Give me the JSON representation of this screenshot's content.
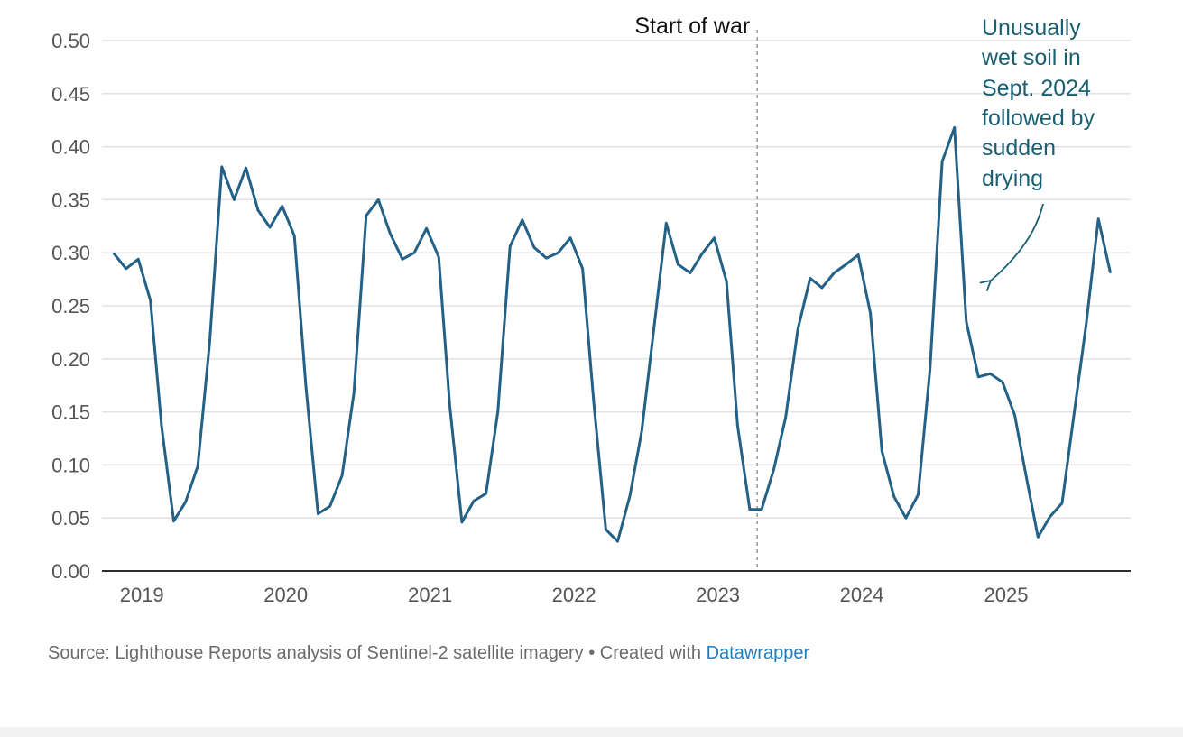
{
  "chart_data": {
    "type": "line",
    "title": "",
    "xlabel": "",
    "ylabel": "",
    "ylim": [
      0,
      0.5
    ],
    "grid": true,
    "x_ticks": [
      "2019",
      "2020",
      "2021",
      "2022",
      "2023",
      "2024",
      "2025"
    ],
    "y_ticks": [
      "0.00",
      "0.05",
      "0.10",
      "0.15",
      "0.20",
      "0.25",
      "0.30",
      "0.35",
      "0.40",
      "0.45",
      "0.50"
    ],
    "series": [
      {
        "color": "#236286",
        "x": [
          "2018-11",
          "2018-12",
          "2019-01",
          "2019-02",
          "2019-03",
          "2019-04",
          "2019-05",
          "2019-06",
          "2019-07",
          "2019-08",
          "2019-09",
          "2019-10",
          "2019-11",
          "2019-12",
          "2020-01",
          "2020-02",
          "2020-03",
          "2020-04",
          "2020-05",
          "2020-06",
          "2020-07",
          "2020-08",
          "2020-09",
          "2020-10",
          "2020-11",
          "2020-12",
          "2021-01",
          "2021-02",
          "2021-03",
          "2021-04",
          "2021-05",
          "2021-06",
          "2021-07",
          "2021-08",
          "2021-09",
          "2021-10",
          "2021-11",
          "2021-12",
          "2022-01",
          "2022-02",
          "2022-03",
          "2022-04",
          "2022-05",
          "2022-06",
          "2022-07",
          "2022-08",
          "2022-09",
          "2022-10",
          "2022-11",
          "2022-12",
          "2023-01",
          "2023-02",
          "2023-03",
          "2023-04",
          "2023-05",
          "2023-06",
          "2023-07",
          "2023-08",
          "2023-09",
          "2023-10",
          "2023-11",
          "2023-12",
          "2024-01",
          "2024-02",
          "2024-03",
          "2024-04",
          "2024-05",
          "2024-06",
          "2024-07",
          "2024-08",
          "2024-09",
          "2024-10",
          "2024-11",
          "2024-12",
          "2025-01",
          "2025-02",
          "2025-03",
          "2025-04",
          "2025-05",
          "2025-06",
          "2025-07",
          "2025-08",
          "2025-09",
          "2025-10"
        ],
        "values": [
          0.299,
          0.285,
          0.294,
          0.255,
          0.137,
          0.047,
          0.065,
          0.099,
          0.215,
          0.381,
          0.35,
          0.38,
          0.34,
          0.324,
          0.344,
          0.316,
          0.175,
          0.054,
          0.061,
          0.09,
          0.168,
          0.335,
          0.35,
          0.318,
          0.294,
          0.3,
          0.323,
          0.296,
          0.156,
          0.046,
          0.066,
          0.073,
          0.15,
          0.306,
          0.331,
          0.305,
          0.295,
          0.3,
          0.314,
          0.285,
          0.16,
          0.039,
          0.028,
          0.071,
          0.132,
          0.229,
          0.328,
          0.289,
          0.281,
          0.299,
          0.314,
          0.273,
          0.137,
          0.058,
          0.058,
          0.096,
          0.145,
          0.228,
          0.276,
          0.267,
          0.281,
          0.289,
          0.298,
          0.243,
          0.113,
          0.07,
          0.05,
          0.072,
          0.19,
          0.386,
          0.418,
          0.235,
          0.183,
          0.186,
          0.178,
          0.147,
          0.091,
          0.032,
          0.051,
          0.064,
          0.147,
          0.232,
          0.332,
          0.282
        ]
      }
    ],
    "annotations": [
      {
        "text": "Start of war",
        "x": "2023-04-20"
      },
      {
        "lines": [
          "Unusually",
          "wet soil in",
          "Sept. 2024",
          "followed by",
          "sudden",
          "drying"
        ],
        "color": "#1b5f73"
      }
    ]
  },
  "footer": {
    "source_text": "Source: Lighthouse Reports analysis of Sentinel-2 satellite imagery • Created with ",
    "link_text": "Datawrapper"
  }
}
